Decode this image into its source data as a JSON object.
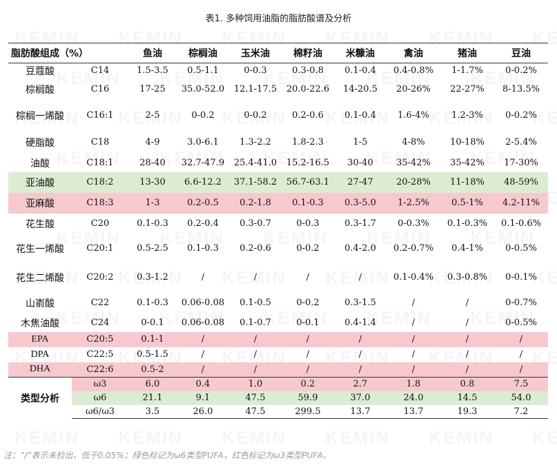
{
  "caption": "表1. 多种饲用油脂的脂肪酸谱及分析",
  "watermark": "KEMIN",
  "header": [
    "脂肪酸组成（%）",
    "",
    "鱼油",
    "棕榈油",
    "玉米油",
    "棉籽油",
    "米糠油",
    "禽油",
    "猪油",
    "豆油"
  ],
  "rows": [
    {
      "name": "豆蔻酸",
      "code": "C14",
      "h": 22,
      "hl": "",
      "vals": [
        "1.5-3.5",
        "0.5-1.1",
        "0-0.3",
        "0.3-0.8",
        "0.1-0.4",
        "0.4-0.8%",
        "1-1.7%",
        "0-0.2%"
      ]
    },
    {
      "name": "棕榈酸",
      "code": "C16",
      "h": 32,
      "hl": "",
      "vals": [
        "17-25",
        "35.0-52.0",
        "12.1-17.5",
        "20.0-22.6",
        "14-20.5",
        "20-26%",
        "22-27%",
        "8-13.5%"
      ]
    },
    {
      "name": "棕榈一烯酸",
      "code": "C16:1",
      "h": 44,
      "hl": "",
      "vals": [
        "2-5",
        "0-0.2",
        "0-0.2",
        "0.2-0.6",
        "0.1-0.4",
        "1.6-4%",
        "1.2-3%",
        "0-0.2%"
      ]
    },
    {
      "name": "硬脂酸",
      "code": "C18",
      "h": 34,
      "hl": "",
      "vals": [
        "4-9",
        "3.0-6.1",
        "1.3-2.2",
        "1.8-2.3",
        "1-5",
        "4-8%",
        "10-18%",
        "2-5.4%"
      ]
    },
    {
      "name": "油酸",
      "code": "C18:1",
      "h": 26,
      "hl": "",
      "vals": [
        "28-40",
        "32.7-47.9",
        "25.4-41.0",
        "15.2-16.5",
        "30-40",
        "35-42%",
        "35-42%",
        "17-30%"
      ]
    },
    {
      "name": "亚油酸",
      "code": "C18:2",
      "h": 30,
      "hl": "green",
      "vals": [
        "13-30",
        "6.6-12.2",
        "37.1-58.2",
        "56.7-63.1",
        "27-47",
        "20-28%",
        "11-18%",
        "48-59%"
      ]
    },
    {
      "name": "亚麻酸",
      "code": "C18:3",
      "h": 30,
      "hl": "red",
      "vals": [
        "1-3",
        "0.2-0.5",
        "0.2-1.8",
        "0.1-0.3",
        "0.3-5.0",
        "1-2.5%",
        "0.5-1%",
        "4.2-11%"
      ]
    },
    {
      "name": "花生酸",
      "code": "C20",
      "h": 30,
      "hl": "",
      "vals": [
        "0.1-0.3",
        "0.2-0.4",
        "0.3-0.7",
        "0-0.3",
        "0.3-1.7",
        "0-0.3%",
        "0.1-0.3%",
        "0.1-0.6%"
      ]
    },
    {
      "name": "花生一烯酸",
      "code": "C20:1",
      "h": 42,
      "hl": "",
      "vals": [
        "0.5-2.5",
        "0.1-0.3",
        "0.2-0.6",
        "0-0.2",
        "0.4-2.0",
        "0.2-0.7%",
        "0.4-1%",
        "0-0.5%"
      ]
    },
    {
      "name": "花生二烯酸",
      "code": "C20:2",
      "h": 42,
      "hl": "",
      "vals": [
        "0.3-1.2",
        "/",
        "/",
        "/",
        "/",
        "0.1-0.4%",
        "0.3-0.8%",
        "0-0.1%"
      ]
    },
    {
      "name": "山嵛酸",
      "code": "C22",
      "h": 32,
      "hl": "",
      "vals": [
        "0.1-0.3",
        "0.06-0.08",
        "0.1-0.5",
        "0-0.2",
        "0.3-1.5",
        "/",
        "/",
        "0-0.7%"
      ]
    },
    {
      "name": "木焦油酸",
      "code": "C24",
      "h": 26,
      "hl": "",
      "vals": [
        "0-0.1",
        "0.06-0.08",
        "0.1-0.7",
        "0-0.1",
        "0.4-1.4",
        "/",
        "/",
        "0-0.5%"
      ]
    },
    {
      "name": "EPA",
      "code": "C20:5",
      "h": 22,
      "hl": "red",
      "vals": [
        "0.1-1",
        "/",
        "/",
        "/",
        "/",
        "/",
        "/",
        "/"
      ]
    },
    {
      "name": "DPA",
      "code": "C22:5",
      "h": 22,
      "hl": "",
      "vals": [
        "0.5-1.5",
        "/",
        "/",
        "/",
        "/",
        "/",
        "/",
        "/"
      ]
    },
    {
      "name": "DHA",
      "code": "C22:6",
      "h": 22,
      "hl": "red",
      "vals": [
        "0.5-2",
        "/",
        "/",
        "/",
        "/",
        "/",
        "/",
        "/"
      ]
    }
  ],
  "summary": {
    "label": "类型分析",
    "rows": [
      {
        "code": "ω3",
        "hl": "red",
        "vals": [
          "6.0",
          "0.4",
          "1.0",
          "0.2",
          "2.7",
          "1.8",
          "0.8",
          "7.5"
        ]
      },
      {
        "code": "ω6",
        "hl": "green",
        "vals": [
          "21.1",
          "9.1",
          "47.5",
          "59.9",
          "37.0",
          "24.0",
          "14.5",
          "54.0"
        ]
      },
      {
        "code": "ω6/ω3",
        "hl": "",
        "vals": [
          "3.5",
          "26.0",
          "47.5",
          "299.5",
          "13.7",
          "13.7",
          "19.3",
          "7.2"
        ]
      }
    ]
  },
  "note": "注：“/”表示未检出，低于0.05%；绿色标记为ω6类型PUFA，红色标记为ω3类型PUFA。",
  "colors": {
    "green": "#dbecd2",
    "red": "#f7c9cf"
  }
}
